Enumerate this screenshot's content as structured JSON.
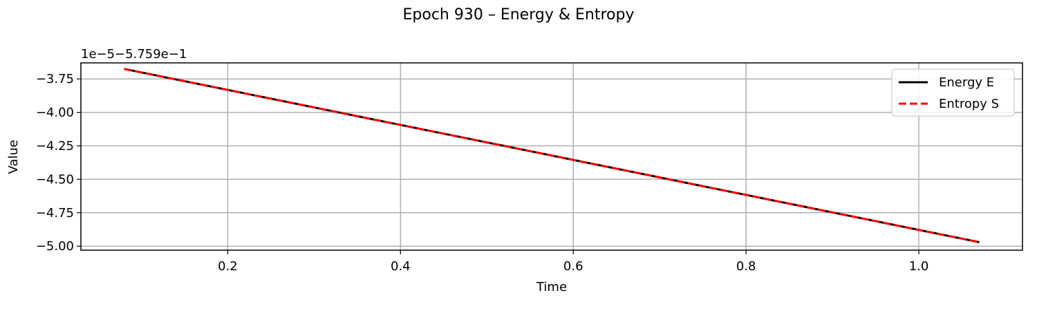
{
  "chart_data": {
    "type": "line",
    "title": "Epoch 930 – Energy & Entropy",
    "xlabel": "Time",
    "ylabel": "Value",
    "y_offset_text": "1e−5−5.759e−1",
    "xlim": [
      0.03,
      1.12
    ],
    "ylim": [
      -5.03,
      -3.63
    ],
    "x_ticks": [
      {
        "value": 0.2,
        "label": "0.2"
      },
      {
        "value": 0.4,
        "label": "0.4"
      },
      {
        "value": 0.6,
        "label": "0.6"
      },
      {
        "value": 0.8,
        "label": "0.8"
      },
      {
        "value": 1.0,
        "label": "1.0"
      }
    ],
    "y_ticks": [
      {
        "value": -3.75,
        "label": "−3.75"
      },
      {
        "value": -4.0,
        "label": "−4.00"
      },
      {
        "value": -4.25,
        "label": "−4.25"
      },
      {
        "value": -4.5,
        "label": "−4.50"
      },
      {
        "value": -4.75,
        "label": "−4.75"
      },
      {
        "value": -5.0,
        "label": "−5.00"
      }
    ],
    "grid": true,
    "legend_position": "top-right",
    "series": [
      {
        "name": "Energy E",
        "color": "#000000",
        "dash": "solid",
        "x": [
          0.08,
          1.07
        ],
        "y": [
          -3.675,
          -4.97
        ]
      },
      {
        "name": "Entropy S",
        "color": "#ff0000",
        "dash": "dashed",
        "x": [
          0.08,
          1.07
        ],
        "y": [
          -3.675,
          -4.97
        ]
      }
    ]
  }
}
